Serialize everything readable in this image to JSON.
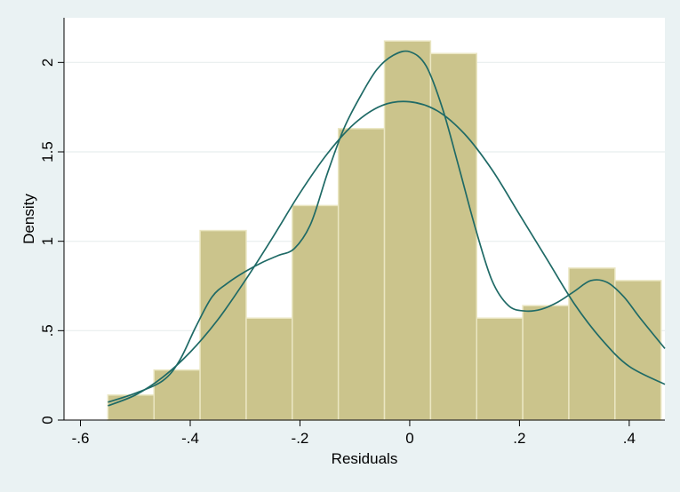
{
  "chart_data": {
    "type": "bar",
    "xlabel": "Residuals",
    "ylabel": "Density",
    "xlim": [
      -0.63,
      0.465
    ],
    "ylim": [
      0,
      2.25
    ],
    "xticks": [
      -0.6,
      -0.4,
      -0.2,
      0,
      0.2,
      0.4
    ],
    "xtick_labels": [
      "-.6",
      "-.4",
      "-.2",
      "0",
      ".2",
      ".4"
    ],
    "yticks": [
      0,
      0.5,
      1,
      1.5,
      2
    ],
    "ytick_labels": [
      "0",
      ".5",
      "1",
      "1.5",
      "2"
    ],
    "grid": true,
    "histogram": {
      "bin_edges": [
        -0.55,
        -0.466,
        -0.382,
        -0.298,
        -0.214,
        -0.13,
        -0.046,
        0.038,
        0.122,
        0.206,
        0.29,
        0.374,
        0.458
      ],
      "values": [
        0.14,
        0.28,
        1.06,
        0.57,
        1.2,
        1.63,
        2.12,
        2.05,
        0.57,
        0.64,
        0.85,
        0.78
      ]
    },
    "series": [
      {
        "type": "line",
        "x": [
          -0.55,
          -0.5,
          -0.45,
          -0.4,
          -0.35,
          -0.3,
          -0.25,
          -0.2,
          -0.15,
          -0.1,
          -0.05,
          0,
          0.05,
          0.1,
          0.15,
          0.2,
          0.25,
          0.3,
          0.35,
          0.4,
          0.465
        ],
        "values": [
          0.08,
          0.14,
          0.24,
          0.38,
          0.56,
          0.78,
          1.02,
          1.27,
          1.49,
          1.66,
          1.76,
          1.78,
          1.73,
          1.6,
          1.4,
          1.15,
          0.9,
          0.65,
          0.45,
          0.3,
          0.2
        ]
      },
      {
        "type": "line",
        "x": [
          -0.55,
          -0.5,
          -0.45,
          -0.42,
          -0.39,
          -0.36,
          -0.33,
          -0.3,
          -0.27,
          -0.24,
          -0.21,
          -0.18,
          -0.15,
          -0.12,
          -0.09,
          -0.06,
          -0.03,
          0,
          0.03,
          0.06,
          0.09,
          0.12,
          0.15,
          0.18,
          0.21,
          0.24,
          0.27,
          0.3,
          0.33,
          0.36,
          0.39,
          0.42,
          0.465
        ],
        "values": [
          0.1,
          0.15,
          0.22,
          0.33,
          0.52,
          0.69,
          0.77,
          0.83,
          0.88,
          0.92,
          0.96,
          1.1,
          1.38,
          1.63,
          1.81,
          1.96,
          2.04,
          2.06,
          1.98,
          1.74,
          1.41,
          1.07,
          0.78,
          0.64,
          0.61,
          0.62,
          0.66,
          0.72,
          0.78,
          0.77,
          0.69,
          0.57,
          0.4
        ]
      }
    ],
    "colors": {
      "bar_fill": "#cbc48c",
      "bar_edge": "#eae6c2",
      "line": "#1f6a66",
      "plot_bg": "#ffffff",
      "grid": "#e8eeee",
      "outer_bg": "#eaf2f3"
    }
  }
}
